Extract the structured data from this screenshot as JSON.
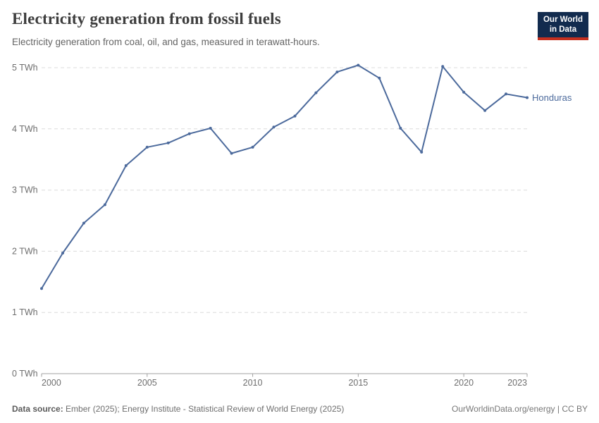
{
  "header": {
    "title": "Electricity generation from fossil fuels",
    "subtitle": "Electricity generation from coal, oil, and gas, measured in terawatt-hours.",
    "logo": {
      "line1": "Our World",
      "line2": "in Data"
    }
  },
  "chart_data": {
    "type": "line",
    "title": "Electricity generation from fossil fuels",
    "unit": "TWh",
    "entity": "Honduras",
    "x": [
      2000,
      2001,
      2002,
      2003,
      2004,
      2005,
      2006,
      2007,
      2008,
      2009,
      2010,
      2011,
      2012,
      2013,
      2014,
      2015,
      2016,
      2017,
      2018,
      2019,
      2020,
      2021,
      2022,
      2023
    ],
    "series": [
      {
        "name": "Honduras",
        "values": [
          1.39,
          1.97,
          2.46,
          2.76,
          3.4,
          3.7,
          3.77,
          3.92,
          4.01,
          3.6,
          3.7,
          4.03,
          4.21,
          4.59,
          4.93,
          5.04,
          4.83,
          4.01,
          3.62,
          5.02,
          4.6,
          4.3,
          4.57,
          4.51
        ]
      }
    ],
    "xlabel": "",
    "ylabel": "",
    "ylim": [
      0,
      5
    ],
    "y_ticks": [
      {
        "value": 0,
        "label": "0 TWh"
      },
      {
        "value": 1,
        "label": "1 TWh"
      },
      {
        "value": 2,
        "label": "2 TWh"
      },
      {
        "value": 3,
        "label": "3 TWh"
      },
      {
        "value": 4,
        "label": "4 TWh"
      },
      {
        "value": 5,
        "label": "5 TWh"
      }
    ],
    "x_ticks": [
      {
        "value": 2000,
        "label": "2000"
      },
      {
        "value": 2005,
        "label": "2005"
      },
      {
        "value": 2010,
        "label": "2010"
      },
      {
        "value": 2015,
        "label": "2015"
      },
      {
        "value": 2020,
        "label": "2020"
      },
      {
        "value": 2023,
        "label": "2023"
      }
    ],
    "grid": "horizontal-dashed",
    "legend_position": "end-of-line-label",
    "colors": {
      "line": "#4C6A9C",
      "grid": "#dcdcdc",
      "axis": "#a1a1a1",
      "tick_label": "#6e6e6e"
    }
  },
  "footer": {
    "source_prefix": "Data source:",
    "source_text": "Ember (2025); Energy Institute - Statistical Review of World Energy (2025)",
    "credit": "OurWorldinData.org/energy | CC BY"
  }
}
